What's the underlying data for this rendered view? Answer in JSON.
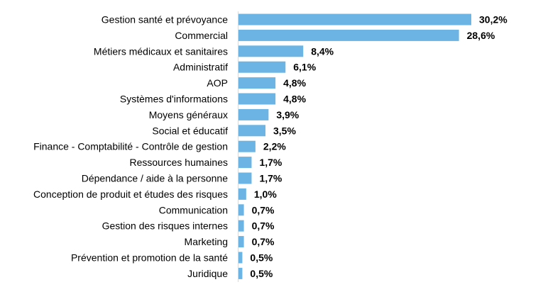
{
  "chart_data": {
    "type": "bar",
    "orientation": "horizontal",
    "title": "",
    "xlabel": "",
    "ylabel": "",
    "xlim": [
      0,
      30.2
    ],
    "grid": false,
    "legend": "none",
    "bar_color": "#6cb4e4",
    "categories": [
      "Gestion santé et prévoyance",
      "Commercial",
      "Métiers médicaux et sanitaires",
      "Administratif",
      "AOP",
      "Systèmes d'informations",
      "Moyens généraux",
      "Social et éducatif",
      "Finance - Comptabilité - Contrôle de gestion",
      "Ressources humaines",
      "Dépendance / aide à la personne",
      "Conception de produit et études des risques",
      "Communication",
      "Gestion des risques internes",
      "Marketing",
      "Prévention et promotion de la santé",
      "Juridique"
    ],
    "values": [
      30.2,
      28.6,
      8.4,
      6.1,
      4.8,
      4.8,
      3.9,
      3.5,
      2.2,
      1.7,
      1.7,
      1.0,
      0.7,
      0.7,
      0.7,
      0.5,
      0.5
    ],
    "value_labels": [
      "30,2%",
      "28,6%",
      "8,4%",
      "6,1%",
      "4,8%",
      "4,8%",
      "3,9%",
      "3,5%",
      "2,2%",
      "1,7%",
      "1,7%",
      "1,0%",
      "0,7%",
      "0,7%",
      "0,7%",
      "0,5%",
      "0,5%"
    ]
  }
}
